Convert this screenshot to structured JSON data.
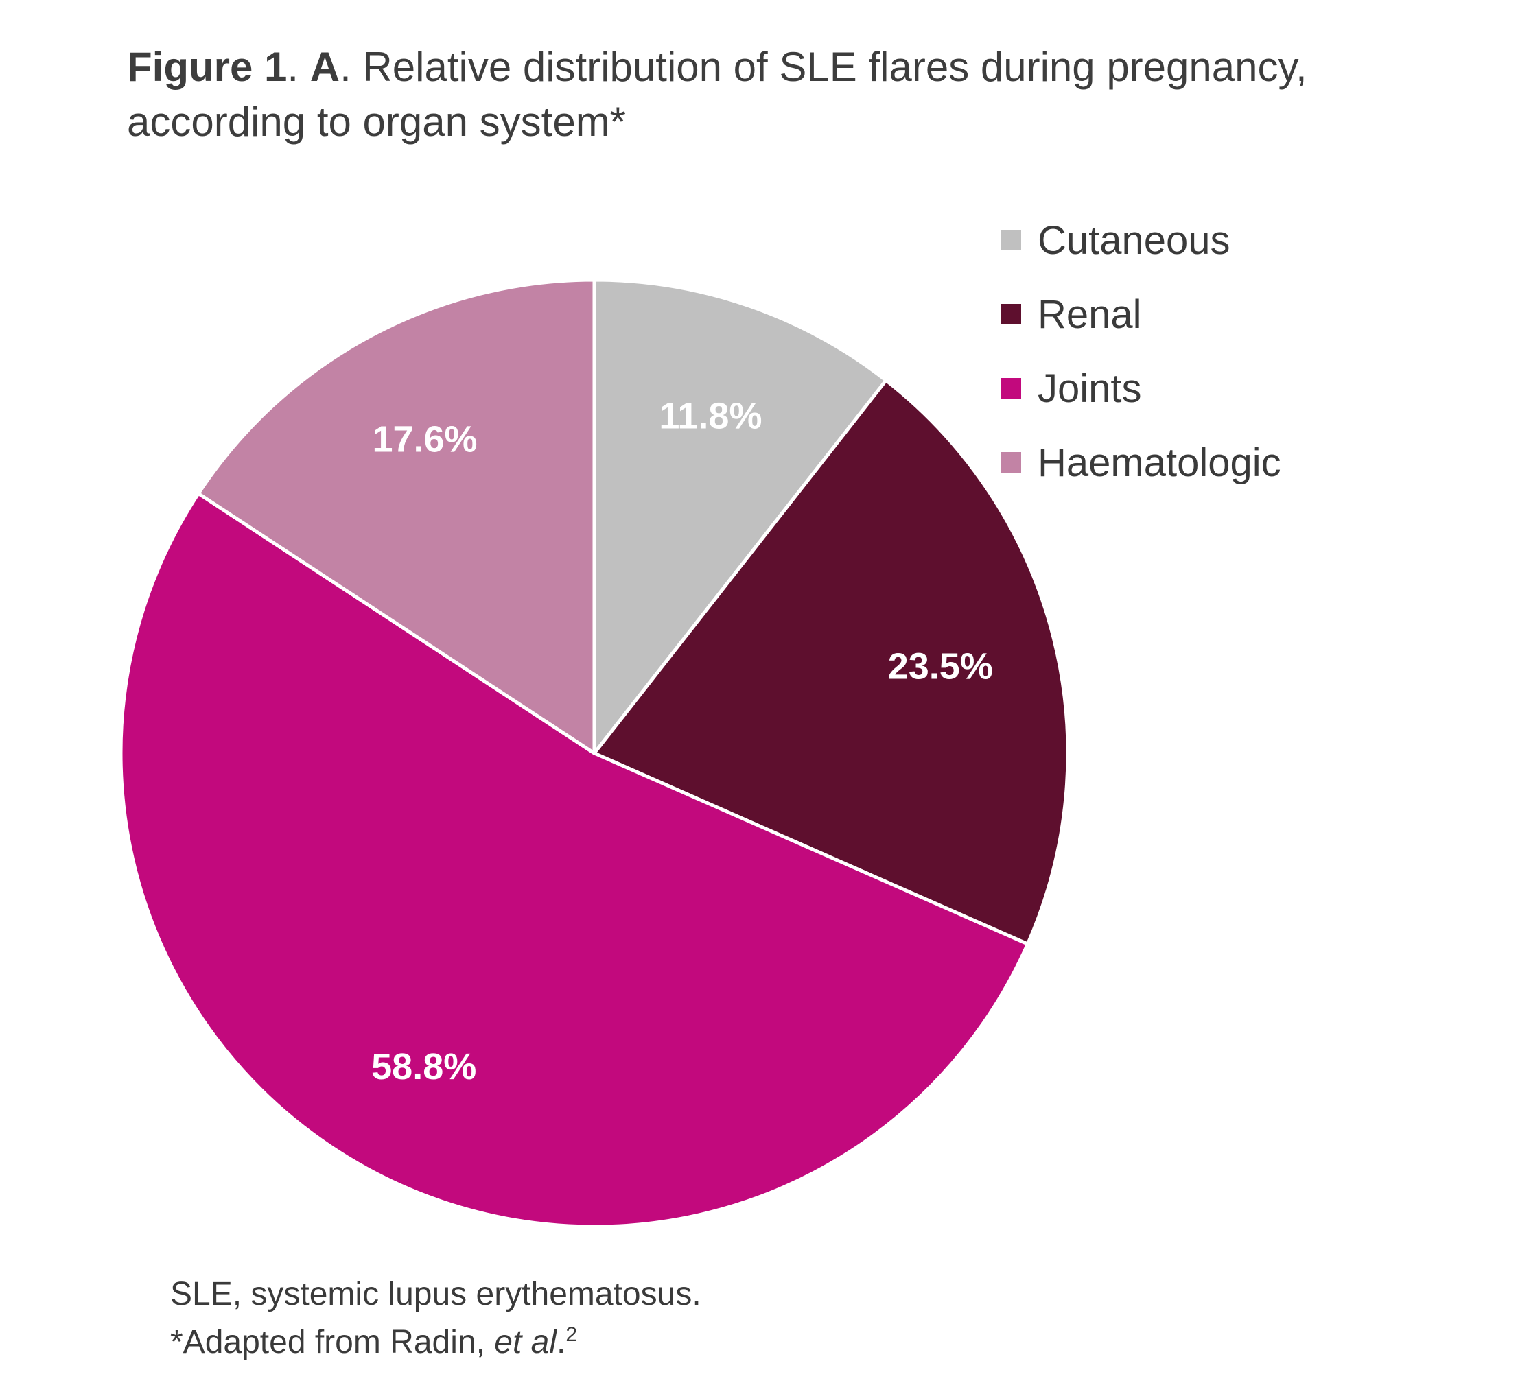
{
  "title": {
    "figure_label": "Figure 1",
    "sep1": ". ",
    "panel_label": "A",
    "text": ". Relative distribution of SLE flares during pregnancy, according to organ system*"
  },
  "chart_data": {
    "type": "pie",
    "start": "12 o'clock",
    "direction": "clockwise",
    "slices": [
      {
        "name": "Cutaneous",
        "value": 11.8,
        "label": "11.8%",
        "color": "#c0c0c0"
      },
      {
        "name": "Renal",
        "value": 23.5,
        "label": "23.5%",
        "color": "#5e0f2e"
      },
      {
        "name": "Joints",
        "value": 58.8,
        "label": "58.8%",
        "color": "#c2097d"
      },
      {
        "name": "Haematologic",
        "value": 17.6,
        "label": "17.6%",
        "color": "#c283a5"
      }
    ],
    "legend_position": "top-right"
  },
  "footnote": {
    "line1": "SLE, systemic lupus erythematosus.",
    "line2_text": "*Adapted from Radin, ",
    "line2_italic": "et al",
    "line2_end": ".",
    "line2_ref": "2"
  }
}
